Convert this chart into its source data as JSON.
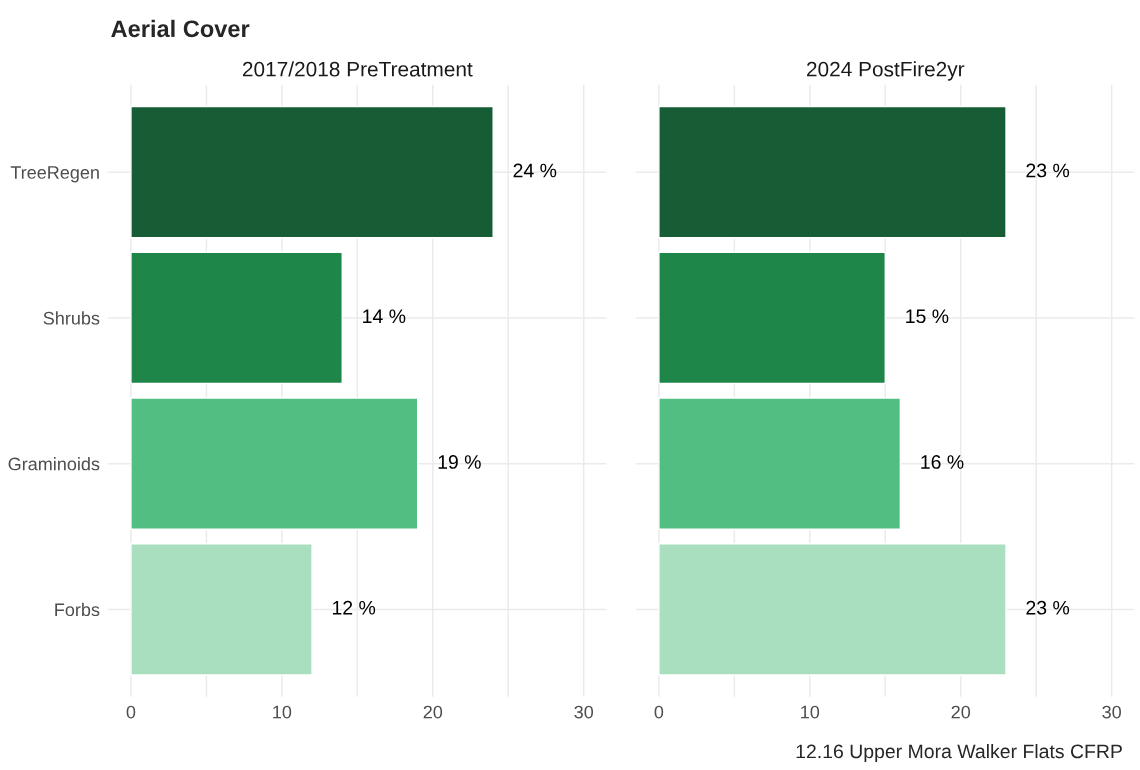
{
  "chart_data": [
    {
      "type": "bar",
      "orientation": "horizontal",
      "title": "2017/2018 PreTreatment",
      "categories": [
        "TreeRegen",
        "Shrubs",
        "Graminoids",
        "Forbs"
      ],
      "values": [
        24,
        14,
        19,
        12
      ],
      "colors": [
        "#165c35",
        "#1f8649",
        "#52be81",
        "#a9dfbf"
      ],
      "value_labels": [
        "24 %",
        "14 %",
        "19 %",
        "12 %"
      ],
      "xlim": [
        -1.5,
        31.5
      ],
      "xticks": [
        0,
        {
          "value": 5,
          "label": null
        },
        10,
        {
          "value": 15,
          "label": null
        },
        20,
        {
          "value": 25,
          "label": null
        },
        30
      ],
      "grid": true,
      "annotations": [
        "Aerial Cover"
      ]
    },
    {
      "type": "bar",
      "orientation": "horizontal",
      "title": "2024 PostFire2yr",
      "categories": [
        null,
        null,
        null,
        null
      ],
      "values": [
        23,
        15,
        16,
        23
      ],
      "colors": [
        "#165c35",
        "#1f8649",
        "#52be81",
        "#a9dfbf"
      ],
      "value_labels": [
        "23 %",
        "15 %",
        "16 %",
        "23 %"
      ],
      "xlim": [
        -1.5,
        31.5
      ],
      "xticks": [
        0,
        {
          "value": 5,
          "label": null
        },
        10,
        {
          "value": 15,
          "label": null
        },
        20,
        {
          "value": 25,
          "label": null
        },
        30
      ],
      "grid": true,
      "tick_labels": "x",
      "annotations": [
        "12.16 Upper Mora Walker Flats CFRP"
      ]
    }
  ]
}
